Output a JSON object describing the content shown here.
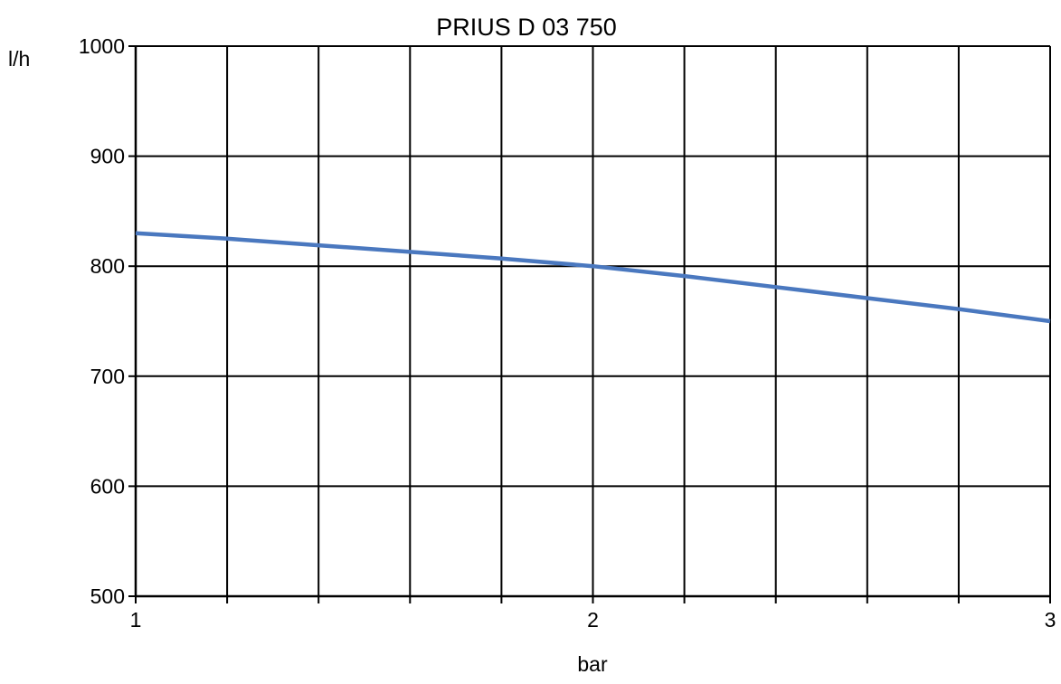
{
  "chart_data": {
    "type": "line",
    "title": "PRIUS D 03 750",
    "xlabel": "bar",
    "ylabel": "l/h",
    "xlim": [
      1,
      3
    ],
    "ylim": [
      500,
      1000
    ],
    "x_ticks": [
      1,
      2,
      3
    ],
    "x_minor_divisions": 10,
    "y_ticks": [
      500,
      600,
      700,
      800,
      900,
      1000
    ],
    "grid": true,
    "legend": "none",
    "series": [
      {
        "color": "#4a78bf",
        "x": [
          1.0,
          1.2,
          1.4,
          1.6,
          1.8,
          2.0,
          2.2,
          2.4,
          2.6,
          2.8,
          3.0
        ],
        "y": [
          830,
          825,
          819,
          813,
          807,
          800,
          791,
          781,
          771,
          761,
          750
        ]
      }
    ]
  }
}
